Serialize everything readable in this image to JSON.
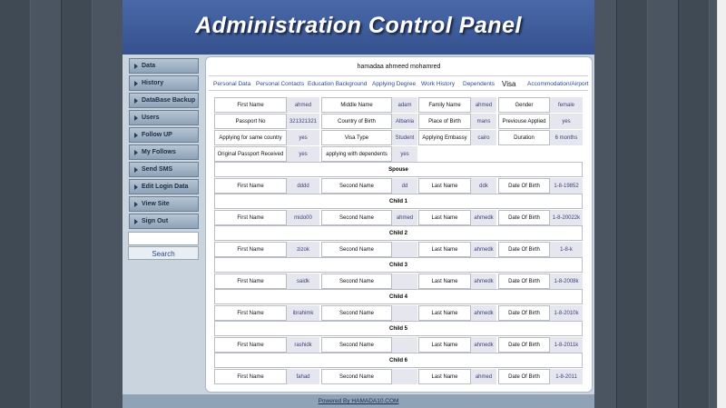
{
  "header": {
    "title": "Administration Control Panel"
  },
  "menu": [
    "Data",
    "History",
    "DataBase Backup",
    "Users",
    "Follow UP",
    "My Follows",
    "Send SMS",
    "Edit Login Data",
    "View Site",
    "Sign Out"
  ],
  "search": {
    "button": "Search"
  },
  "user": "hamadaa ahmeed mohamred",
  "tabs": {
    "items": [
      "Personal Data",
      "Personal Contacts",
      "Education Background",
      "Applying Degree",
      "Work History",
      "Dependents",
      "Visa",
      "Accommodation/Airport"
    ],
    "active": 6
  },
  "visa": {
    "rows": [
      [
        {
          "label": "First Name",
          "value": "ahmed"
        },
        {
          "label": "Middle Name",
          "value": "adam"
        },
        {
          "label": "Family Name",
          "value": "ahmed"
        },
        {
          "label": "Gender",
          "value": "female"
        }
      ],
      [
        {
          "label": "Passport No",
          "value": "321321321"
        },
        {
          "label": "Country of Birth",
          "value": "Albania"
        },
        {
          "label": "Place of Birth",
          "value": "mans"
        },
        {
          "label": "Previouse Applied",
          "value": "yes"
        }
      ],
      [
        {
          "label": "Applying for same country",
          "value": "yes"
        },
        {
          "label": "Visa Type",
          "value": "Student"
        },
        {
          "label": "Applying Embassy",
          "value": "cairo"
        },
        {
          "label": "Duration",
          "value": "6 months"
        }
      ],
      [
        {
          "label": "Original Passport Received",
          "value": "yes"
        },
        {
          "label": "applying with dependents",
          "value": "yes"
        }
      ]
    ]
  },
  "sections": [
    {
      "title": "Spouse",
      "fields": [
        {
          "label": "First Name",
          "value": "dddd"
        },
        {
          "label": "Second Name",
          "value": "dd"
        },
        {
          "label": "Last Name",
          "value": "ddk"
        },
        {
          "label": "Date Of Birth",
          "value": "1-8-19852"
        }
      ]
    },
    {
      "title": "Child 1",
      "fields": [
        {
          "label": "First Name",
          "value": "mido00"
        },
        {
          "label": "Second Name",
          "value": "ahmed"
        },
        {
          "label": "Last Name",
          "value": "ahmedk"
        },
        {
          "label": "Date Of Birth",
          "value": "1-8-20022k"
        }
      ]
    },
    {
      "title": "Child 2",
      "fields": [
        {
          "label": "First Name",
          "value": "zizok"
        },
        {
          "label": "Second Name",
          "value": null
        },
        {
          "label": "Last Name",
          "value": "ahmedk"
        },
        {
          "label": "Date Of Birth",
          "value": "1-8-k"
        }
      ]
    },
    {
      "title": "Child 3",
      "fields": [
        {
          "label": "First Name",
          "value": "saidk"
        },
        {
          "label": "Second Name",
          "value": null
        },
        {
          "label": "Last Name",
          "value": "ahmedk"
        },
        {
          "label": "Date Of Birth",
          "value": "1-8-2008k"
        }
      ]
    },
    {
      "title": "Child 4",
      "fields": [
        {
          "label": "First Name",
          "value": "ibrahimk"
        },
        {
          "label": "Second Name",
          "value": null
        },
        {
          "label": "Last Name",
          "value": "ahmedk"
        },
        {
          "label": "Date Of Birth",
          "value": "1-8-2010k"
        }
      ]
    },
    {
      "title": "Child 5",
      "fields": [
        {
          "label": "First Name",
          "value": "rashidk"
        },
        {
          "label": "Second Name",
          "value": null
        },
        {
          "label": "Last Name",
          "value": "ahmedk"
        },
        {
          "label": "Date Of Birth",
          "value": "1-8-2011k"
        }
      ]
    },
    {
      "title": "Child 6",
      "fields": [
        {
          "label": "First Name",
          "value": "fahad"
        },
        {
          "label": "Second Name",
          "value": null
        },
        {
          "label": "Last Name",
          "value": "ahmed"
        },
        {
          "label": "Date Of Birth",
          "value": "1-8-2011"
        }
      ]
    }
  ],
  "footer": "Powered By HAMADA10.COM"
}
